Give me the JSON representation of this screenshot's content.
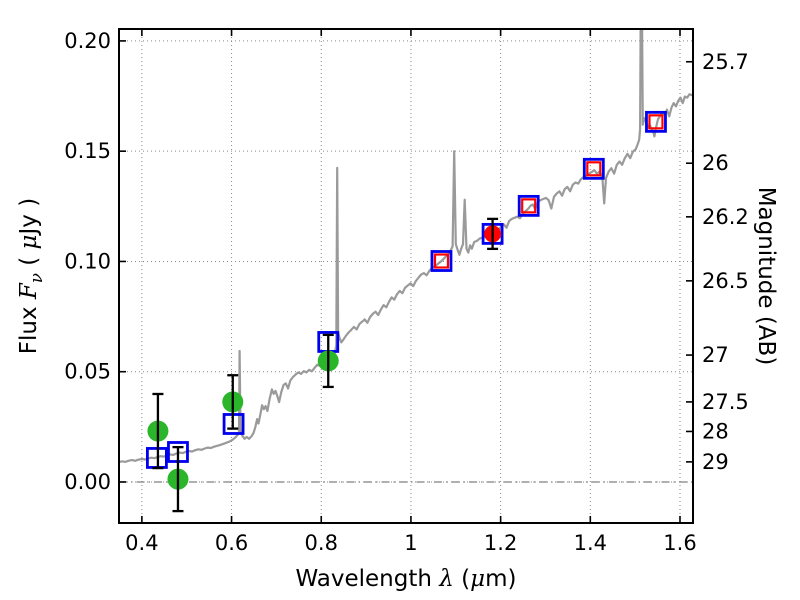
{
  "figure": {
    "background": "#ffffff"
  },
  "chart_data": {
    "type": "line+scatter",
    "title": "",
    "xlabel": "Wavelength λ (μm)",
    "ylabel_left": "Flux Fν ( μJy )",
    "ylabel_right": "Magnitude (AB)",
    "xlabel_segments": [
      {
        "text": "Wavelength  "
      },
      {
        "text": "λ",
        "italic": true,
        "serif": true
      },
      {
        "text": " ("
      },
      {
        "text": "μ",
        "italic": true,
        "serif": true
      },
      {
        "text": "m)"
      }
    ],
    "ylabel_left_segments": [
      {
        "text": "Flux  "
      },
      {
        "text": "F",
        "italic": true,
        "serif": true
      },
      {
        "text": "ν",
        "italic": true,
        "serif": true,
        "sub": true
      },
      {
        "text": "  ( "
      },
      {
        "text": "μ",
        "italic": true,
        "serif": true
      },
      {
        "text": "Jy )"
      }
    ],
    "ylabel_right_segments": [
      {
        "text": "Magnitude (AB)"
      }
    ],
    "xlim": [
      0.349,
      1.629
    ],
    "ylim": [
      -0.0186,
      0.2054
    ],
    "x_ticks": {
      "values": [
        0.4,
        0.6,
        0.8,
        1.0,
        1.2,
        1.4,
        1.6
      ],
      "labels": [
        "0.4",
        "0.6",
        "0.8",
        "1",
        "1.2",
        "1.4",
        "1.6"
      ]
    },
    "y_ticks_left": {
      "values": [
        0.0,
        0.05,
        0.1,
        0.15,
        0.2
      ],
      "labels": [
        "0.00",
        "0.05",
        "0.10",
        "0.15",
        "0.20"
      ]
    },
    "y_ticks_right": {
      "values": [
        25.7,
        26,
        26.2,
        26.5,
        27,
        27.5,
        28,
        29
      ],
      "labels": [
        "25.7",
        "26",
        "26.2",
        "26.5",
        "27",
        "27.5",
        "28",
        "29"
      ]
    },
    "magnitude_zeropoint_ab": 23.9,
    "grid": {
      "style": "dotted",
      "color": "#8a8a8a"
    },
    "zero_line": {
      "y": 0,
      "style": "dash-dot",
      "color": "#808080"
    },
    "axes_color": "#000000",
    "series": [
      {
        "name": "model-spectrum",
        "type": "line",
        "color": "#9a9a9a",
        "width": 2.2,
        "points": [
          [
            0.349,
            0.009
          ],
          [
            0.356,
            0.0094
          ],
          [
            0.363,
            0.0091
          ],
          [
            0.37,
            0.0096
          ],
          [
            0.378,
            0.0099
          ],
          [
            0.385,
            0.0096
          ],
          [
            0.392,
            0.0101
          ],
          [
            0.4,
            0.0104
          ],
          [
            0.407,
            0.0102
          ],
          [
            0.414,
            0.0107
          ],
          [
            0.421,
            0.011
          ],
          [
            0.428,
            0.0108
          ],
          [
            0.435,
            0.0113
          ],
          [
            0.442,
            0.0117
          ],
          [
            0.449,
            0.0115
          ],
          [
            0.456,
            0.0121
          ],
          [
            0.463,
            0.0125
          ],
          [
            0.47,
            0.0123
          ],
          [
            0.477,
            0.0129
          ],
          [
            0.484,
            0.0133
          ],
          [
            0.491,
            0.0131
          ],
          [
            0.498,
            0.0137
          ],
          [
            0.505,
            0.014
          ],
          [
            0.512,
            0.0138
          ],
          [
            0.519,
            0.0144
          ],
          [
            0.526,
            0.0148
          ],
          [
            0.533,
            0.0146
          ],
          [
            0.54,
            0.0152
          ],
          [
            0.547,
            0.0156
          ],
          [
            0.554,
            0.0154
          ],
          [
            0.561,
            0.016
          ],
          [
            0.568,
            0.0164
          ],
          [
            0.575,
            0.0168
          ],
          [
            0.582,
            0.0173
          ],
          [
            0.589,
            0.0178
          ],
          [
            0.596,
            0.0184
          ],
          [
            0.603,
            0.0192
          ],
          [
            0.61,
            0.0205
          ],
          [
            0.614,
            0.0215
          ],
          [
            0.6165,
            0.0225
          ],
          [
            0.618,
            0.0594
          ],
          [
            0.62,
            0.024
          ],
          [
            0.624,
            0.021
          ],
          [
            0.629,
            0.0196
          ],
          [
            0.634,
            0.0204
          ],
          [
            0.639,
            0.0196
          ],
          [
            0.644,
            0.0206
          ],
          [
            0.649,
            0.0222
          ],
          [
            0.653,
            0.0248
          ],
          [
            0.657,
            0.0285
          ],
          [
            0.66,
            0.0265
          ],
          [
            0.664,
            0.0305
          ],
          [
            0.668,
            0.0348
          ],
          [
            0.672,
            0.033
          ],
          [
            0.676,
            0.0344
          ],
          [
            0.68,
            0.0322
          ],
          [
            0.685,
            0.0378
          ],
          [
            0.69,
            0.042
          ],
          [
            0.694,
            0.04
          ],
          [
            0.698,
            0.0413
          ],
          [
            0.702,
            0.039
          ],
          [
            0.706,
            0.0362
          ],
          [
            0.711,
            0.0408
          ],
          [
            0.716,
            0.044
          ],
          [
            0.721,
            0.0447
          ],
          [
            0.726,
            0.0424
          ],
          [
            0.731,
            0.046
          ],
          [
            0.737,
            0.0476
          ],
          [
            0.743,
            0.0488
          ],
          [
            0.749,
            0.0497
          ],
          [
            0.755,
            0.049
          ],
          [
            0.761,
            0.0503
          ],
          [
            0.767,
            0.0497
          ],
          [
            0.773,
            0.0508
          ],
          [
            0.779,
            0.0502
          ],
          [
            0.785,
            0.0517
          ],
          [
            0.791,
            0.0532
          ],
          [
            0.797,
            0.0527
          ],
          [
            0.803,
            0.0538
          ],
          [
            0.809,
            0.0547
          ],
          [
            0.815,
            0.0553
          ],
          [
            0.821,
            0.056
          ],
          [
            0.827,
            0.0572
          ],
          [
            0.831,
            0.0592
          ],
          [
            0.8335,
            0.062
          ],
          [
            0.8355,
            0.1424
          ],
          [
            0.8375,
            0.068
          ],
          [
            0.841,
            0.0652
          ],
          [
            0.845,
            0.0633
          ],
          [
            0.85,
            0.0648
          ],
          [
            0.855,
            0.0663
          ],
          [
            0.861,
            0.0678
          ],
          [
            0.867,
            0.069
          ],
          [
            0.873,
            0.0703
          ],
          [
            0.879,
            0.0692
          ],
          [
            0.885,
            0.0716
          ],
          [
            0.891,
            0.0727
          ],
          [
            0.897,
            0.0737
          ],
          [
            0.903,
            0.0722
          ],
          [
            0.909,
            0.0748
          ],
          [
            0.915,
            0.0762
          ],
          [
            0.921,
            0.0772
          ],
          [
            0.927,
            0.0757
          ],
          [
            0.933,
            0.0782
          ],
          [
            0.939,
            0.0802
          ],
          [
            0.945,
            0.0792
          ],
          [
            0.951,
            0.0817
          ],
          [
            0.957,
            0.0837
          ],
          [
            0.963,
            0.0827
          ],
          [
            0.969,
            0.0851
          ],
          [
            0.975,
            0.0866
          ],
          [
            0.981,
            0.0856
          ],
          [
            0.987,
            0.0881
          ],
          [
            0.993,
            0.0891
          ],
          [
            0.999,
            0.0901
          ],
          [
            1.005,
            0.0888
          ],
          [
            1.011,
            0.0912
          ],
          [
            1.017,
            0.0927
          ],
          [
            1.023,
            0.0941
          ],
          [
            1.029,
            0.0947
          ],
          [
            1.035,
            0.0937
          ],
          [
            1.041,
            0.0957
          ],
          [
            1.047,
            0.0971
          ],
          [
            1.053,
            0.0977
          ],
          [
            1.059,
            0.0987
          ],
          [
            1.066,
            0.0998
          ],
          [
            1.073,
            0.1012
          ],
          [
            1.08,
            0.1027
          ],
          [
            1.087,
            0.1043
          ],
          [
            1.093,
            0.1068
          ],
          [
            1.0965,
            0.15
          ],
          [
            1.1,
            0.1078
          ],
          [
            1.104,
            0.1053
          ],
          [
            1.108,
            0.103
          ],
          [
            1.112,
            0.1058
          ],
          [
            1.116,
            0.1078
          ],
          [
            1.12,
            0.128
          ],
          [
            1.124,
            0.1058
          ],
          [
            1.128,
            0.104
          ],
          [
            1.132,
            0.1073
          ],
          [
            1.136,
            0.1058
          ],
          [
            1.141,
            0.1088
          ],
          [
            1.147,
            0.1093
          ],
          [
            1.153,
            0.1103
          ],
          [
            1.159,
            0.1108
          ],
          [
            1.165,
            0.1113
          ],
          [
            1.171,
            0.1118
          ],
          [
            1.177,
            0.1121
          ],
          [
            1.183,
            0.1126
          ],
          [
            1.189,
            0.1134
          ],
          [
            1.195,
            0.1144
          ],
          [
            1.201,
            0.1158
          ],
          [
            1.207,
            0.1168
          ],
          [
            1.213,
            0.1153
          ],
          [
            1.219,
            0.1183
          ],
          [
            1.225,
            0.1193
          ],
          [
            1.231,
            0.1198
          ],
          [
            1.237,
            0.1203
          ],
          [
            1.243,
            0.1196
          ],
          [
            1.249,
            0.1213
          ],
          [
            1.255,
            0.1228
          ],
          [
            1.261,
            0.1238
          ],
          [
            1.267,
            0.1253
          ],
          [
            1.272,
            0.1258
          ],
          [
            1.277,
            0.1238
          ],
          [
            1.283,
            0.1268
          ],
          [
            1.289,
            0.1278
          ],
          [
            1.295,
            0.1283
          ],
          [
            1.301,
            0.1288
          ],
          [
            1.307,
            0.1278
          ],
          [
            1.313,
            0.124
          ],
          [
            1.319,
            0.1293
          ],
          [
            1.325,
            0.1308
          ],
          [
            1.331,
            0.1318
          ],
          [
            1.337,
            0.1298
          ],
          [
            1.343,
            0.1328
          ],
          [
            1.349,
            0.1338
          ],
          [
            1.355,
            0.1318
          ],
          [
            1.361,
            0.1348
          ],
          [
            1.367,
            0.1358
          ],
          [
            1.373,
            0.1353
          ],
          [
            1.379,
            0.1373
          ],
          [
            1.385,
            0.1383
          ],
          [
            1.391,
            0.1388
          ],
          [
            1.397,
            0.1398
          ],
          [
            1.403,
            0.1406
          ],
          [
            1.409,
            0.1414
          ],
          [
            1.415,
            0.1398
          ],
          [
            1.421,
            0.1408
          ],
          [
            1.427,
            0.1378
          ],
          [
            1.431,
            0.1263
          ],
          [
            1.435,
            0.1378
          ],
          [
            1.441,
            0.1408
          ],
          [
            1.447,
            0.1423
          ],
          [
            1.453,
            0.1398
          ],
          [
            1.459,
            0.1438
          ],
          [
            1.465,
            0.1453
          ],
          [
            1.471,
            0.1438
          ],
          [
            1.477,
            0.1468
          ],
          [
            1.483,
            0.1488
          ],
          [
            1.489,
            0.1468
          ],
          [
            1.495,
            0.1498
          ],
          [
            1.501,
            0.1508
          ],
          [
            1.505,
            0.1528
          ],
          [
            1.509,
            0.1552
          ],
          [
            1.511,
            0.16
          ],
          [
            1.5128,
            0.23
          ],
          [
            1.5146,
            0.23
          ],
          [
            1.517,
            0.162
          ],
          [
            1.52,
            0.165
          ],
          [
            1.524,
            0.1635
          ],
          [
            1.528,
            0.1605
          ],
          [
            1.532,
            0.1622
          ],
          [
            1.536,
            0.1603
          ],
          [
            1.54,
            0.159
          ],
          [
            1.543,
            0.1567
          ],
          [
            1.547,
            0.161
          ],
          [
            1.551,
            0.1645
          ],
          [
            1.556,
            0.166
          ],
          [
            1.561,
            0.1678
          ],
          [
            1.566,
            0.1663
          ],
          [
            1.571,
            0.1688
          ],
          [
            1.576,
            0.1658
          ],
          [
            1.581,
            0.1698
          ],
          [
            1.586,
            0.1718
          ],
          [
            1.591,
            0.1703
          ],
          [
            1.596,
            0.1728
          ],
          [
            1.601,
            0.1743
          ],
          [
            1.606,
            0.1718
          ],
          [
            1.611,
            0.1748
          ],
          [
            1.616,
            0.1743
          ],
          [
            1.621,
            0.1758
          ],
          [
            1.629,
            0.1753
          ]
        ]
      },
      {
        "name": "blue-open-square-photometry",
        "type": "scatter",
        "marker": "square-open",
        "color": "#0000ee",
        "size": 19,
        "stroke_width": 2.8,
        "points": [
          {
            "x": 0.4335,
            "y": 0.0109
          },
          {
            "x": 0.4805,
            "y": 0.0136
          },
          {
            "x": 0.6045,
            "y": 0.0263
          },
          {
            "x": 0.8156,
            "y": 0.0635
          },
          {
            "x": 1.0681,
            "y": 0.1002
          },
          {
            "x": 1.1821,
            "y": 0.1125
          },
          {
            "x": 1.2626,
            "y": 0.1252
          },
          {
            "x": 1.4078,
            "y": 0.142
          },
          {
            "x": 1.5464,
            "y": 0.1633
          }
        ]
      },
      {
        "name": "red-open-square-model-photometry",
        "type": "scatter",
        "marker": "square-open",
        "color": "#ff0000",
        "size": 13,
        "stroke_width": 2.2,
        "points": [
          {
            "x": 1.0681,
            "y": 0.1002
          },
          {
            "x": 1.2626,
            "y": 0.1252
          },
          {
            "x": 1.4078,
            "y": 0.142
          },
          {
            "x": 1.5464,
            "y": 0.1633
          }
        ]
      },
      {
        "name": "green-circle-photometry",
        "type": "scatter",
        "marker": "circle-filled",
        "color": "#2bb52b",
        "size": 21,
        "points": [
          {
            "x": 0.4358,
            "y": 0.0231,
            "yerr": 0.0168
          },
          {
            "x": 0.4805,
            "y": 0.0013,
            "yerr": 0.0145
          },
          {
            "x": 0.6027,
            "y": 0.0363,
            "yerr": 0.0121
          },
          {
            "x": 0.8156,
            "y": 0.0549,
            "yerr": 0.0118
          }
        ]
      },
      {
        "name": "red-circle-photometry",
        "type": "scatter",
        "marker": "circle-filled",
        "color": "#ff0000",
        "size": 17,
        "points": [
          {
            "x": 1.1821,
            "y": 0.1125,
            "yerr": 0.0068
          }
        ]
      }
    ]
  }
}
